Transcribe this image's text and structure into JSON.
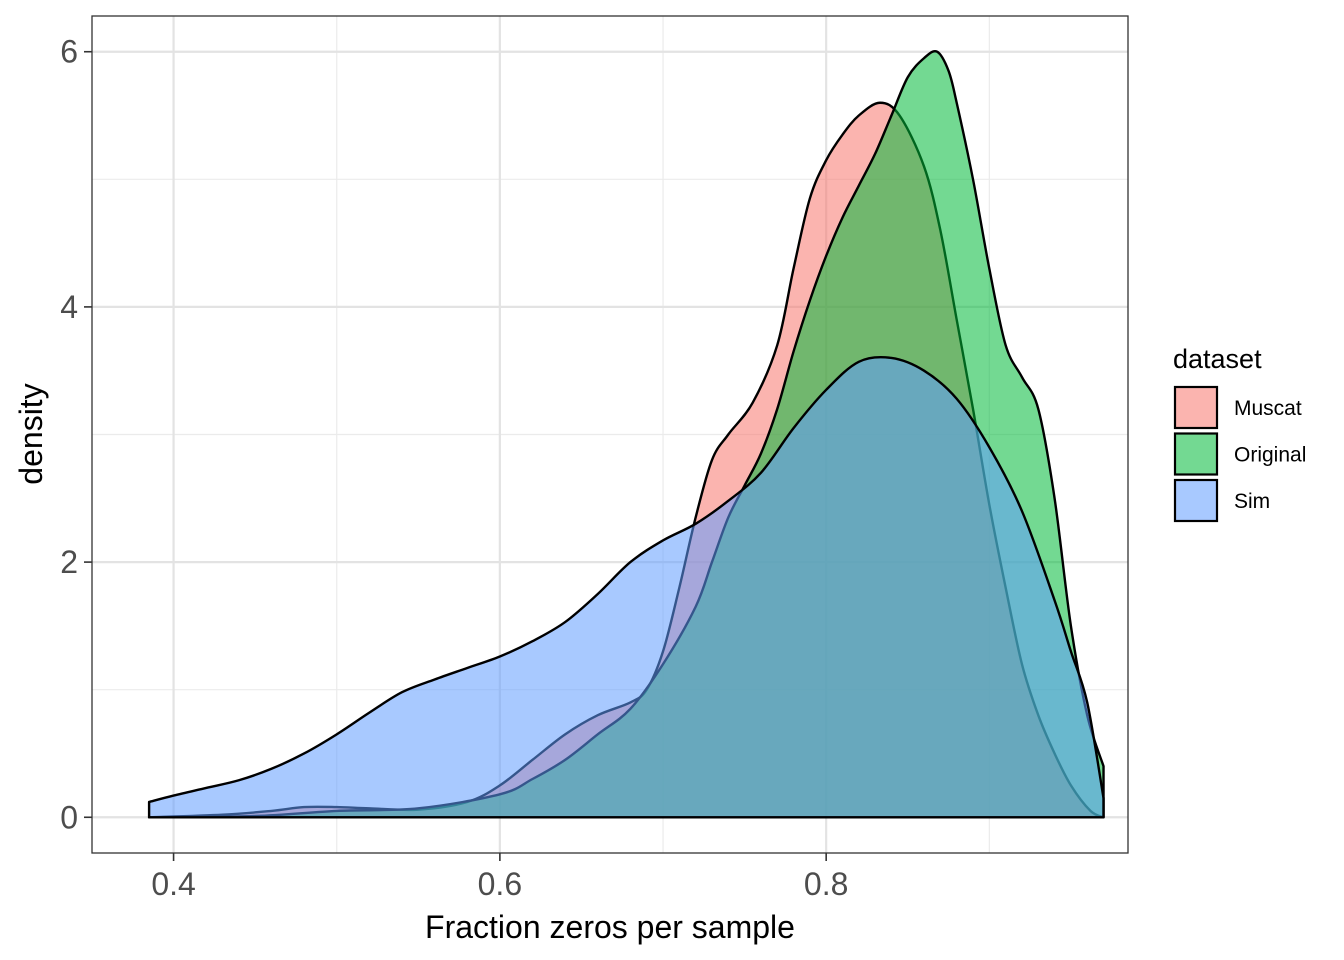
{
  "chart_data": {
    "type": "area",
    "subtype": "density",
    "title": "",
    "xlabel": "Fraction zeros per sample",
    "ylabel": "density",
    "xlim": [
      0.35,
      0.985
    ],
    "ylim": [
      -0.28,
      6.28
    ],
    "x_ticks": [
      0.4,
      0.6,
      0.8
    ],
    "x_tick_labels": [
      "0.4",
      "0.6",
      "0.8"
    ],
    "y_ticks": [
      0,
      2,
      4,
      6
    ],
    "y_tick_labels": [
      "0",
      "2",
      "4",
      "6"
    ],
    "x_minor_ticks": [
      0.5,
      0.7,
      0.9
    ],
    "y_minor_ticks": [
      1,
      3,
      5
    ],
    "grid": true,
    "legend": {
      "title": "dataset",
      "position": "right"
    },
    "series": [
      {
        "name": "Muscat",
        "color": "#F8766D",
        "x": [
          0.385,
          0.43,
          0.46,
          0.48,
          0.5,
          0.52,
          0.55,
          0.58,
          0.6,
          0.62,
          0.64,
          0.66,
          0.68,
          0.69,
          0.7,
          0.71,
          0.72,
          0.73,
          0.74,
          0.755,
          0.77,
          0.78,
          0.79,
          0.8,
          0.81,
          0.82,
          0.833,
          0.845,
          0.86,
          0.87,
          0.88,
          0.89,
          0.9,
          0.91,
          0.92,
          0.93,
          0.94,
          0.95,
          0.962,
          0.97
        ],
        "y": [
          0.0,
          0.02,
          0.05,
          0.08,
          0.08,
          0.07,
          0.06,
          0.12,
          0.25,
          0.45,
          0.65,
          0.8,
          0.9,
          1.0,
          1.3,
          1.8,
          2.35,
          2.8,
          3.0,
          3.25,
          3.7,
          4.3,
          4.85,
          5.15,
          5.35,
          5.5,
          5.6,
          5.5,
          5.1,
          4.6,
          3.9,
          3.2,
          2.45,
          1.8,
          1.2,
          0.8,
          0.5,
          0.25,
          0.05,
          0.0
        ]
      },
      {
        "name": "Original",
        "color": "#00BA38",
        "x": [
          0.385,
          0.45,
          0.5,
          0.55,
          0.6,
          0.62,
          0.64,
          0.66,
          0.68,
          0.7,
          0.72,
          0.73,
          0.74,
          0.75,
          0.76,
          0.77,
          0.78,
          0.79,
          0.8,
          0.81,
          0.82,
          0.83,
          0.84,
          0.85,
          0.86,
          0.868,
          0.875,
          0.88,
          0.89,
          0.9,
          0.91,
          0.92,
          0.93,
          0.94,
          0.95,
          0.96,
          0.97
        ],
        "y": [
          0.0,
          0.01,
          0.05,
          0.07,
          0.18,
          0.3,
          0.45,
          0.65,
          0.85,
          1.2,
          1.65,
          2.0,
          2.35,
          2.6,
          2.85,
          3.2,
          3.65,
          4.05,
          4.4,
          4.7,
          4.95,
          5.2,
          5.5,
          5.8,
          5.95,
          6.0,
          5.85,
          5.6,
          5.0,
          4.3,
          3.7,
          3.45,
          3.2,
          2.5,
          1.5,
          0.8,
          0.4
        ]
      },
      {
        "name": "Sim",
        "color": "#619CFF",
        "x": [
          0.385,
          0.4,
          0.42,
          0.44,
          0.46,
          0.48,
          0.5,
          0.52,
          0.54,
          0.56,
          0.58,
          0.6,
          0.62,
          0.64,
          0.66,
          0.68,
          0.7,
          0.72,
          0.74,
          0.76,
          0.78,
          0.8,
          0.82,
          0.84,
          0.86,
          0.88,
          0.9,
          0.92,
          0.94,
          0.95,
          0.96,
          0.97
        ],
        "y": [
          0.12,
          0.17,
          0.23,
          0.29,
          0.38,
          0.5,
          0.65,
          0.82,
          0.98,
          1.08,
          1.17,
          1.26,
          1.38,
          1.53,
          1.75,
          2.0,
          2.17,
          2.3,
          2.48,
          2.7,
          3.05,
          3.35,
          3.57,
          3.6,
          3.5,
          3.28,
          2.9,
          2.4,
          1.7,
          1.3,
          0.9,
          0.15
        ]
      }
    ]
  }
}
